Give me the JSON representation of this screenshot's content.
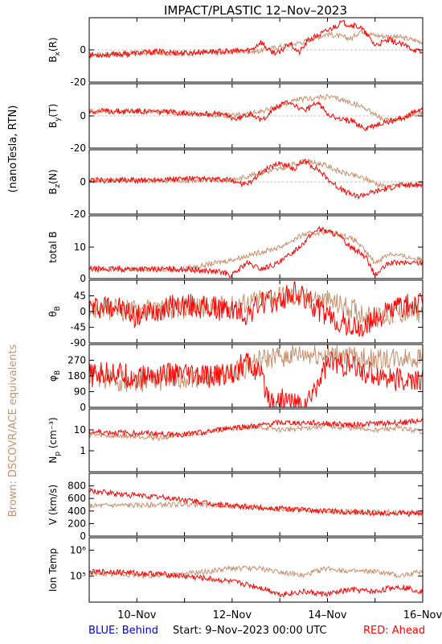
{
  "title": "IMPACT/PLASTIC   12–Nov–2023",
  "units_label": "(nanoTesla, RTN)",
  "side_label": "Brown: DSCOVR/ACE equivalents",
  "footer": {
    "behind": "BLUE: Behind",
    "start": "Start:   9–Nov–2023 00:00 UTC",
    "ahead": "RED: Ahead"
  },
  "colors": {
    "ahead": "#ff0000",
    "equivalent": "#c8906e",
    "behind": "#0000cc",
    "axis": "#000000"
  },
  "chart_data": {
    "type": "line",
    "x_ticks": [
      "10–Nov",
      "12–Nov",
      "14–Nov",
      "16–Nov"
    ],
    "x_range": [
      "2023-11-09T00:00",
      "2023-11-16T00:00"
    ],
    "series_names": [
      "RED: Ahead",
      "Brown: DSCOVR/ACE equivalents"
    ],
    "panels": [
      {
        "id": "bx",
        "ylabel_main": "B",
        "ylabel_sub": "x",
        "ylabel_tail": "(R)",
        "ylim": [
          -20,
          20
        ],
        "ticks": [
          -20,
          0
        ],
        "zero_line": true,
        "ahead": [
          [
            0,
            -3
          ],
          [
            0.5,
            -3
          ],
          [
            1,
            -2
          ],
          [
            1.5,
            -1
          ],
          [
            2,
            -2
          ],
          [
            2.5,
            -1
          ],
          [
            3,
            -1
          ],
          [
            3.4,
            0
          ],
          [
            3.6,
            5
          ],
          [
            3.8,
            -1
          ],
          [
            4,
            -2
          ],
          [
            4.2,
            5
          ],
          [
            4.4,
            -2
          ],
          [
            4.6,
            6
          ],
          [
            5,
            12
          ],
          [
            5.3,
            17
          ],
          [
            5.7,
            14
          ],
          [
            6,
            3
          ],
          [
            6.3,
            6
          ],
          [
            6.6,
            3
          ],
          [
            7,
            -2
          ]
        ],
        "equiv": [
          [
            0,
            -3
          ],
          [
            1,
            -2
          ],
          [
            2,
            -2
          ],
          [
            3,
            -1
          ],
          [
            3.5,
            -1
          ],
          [
            4,
            2
          ],
          [
            4.5,
            5
          ],
          [
            5,
            10
          ],
          [
            5.5,
            7
          ],
          [
            5.7,
            12
          ],
          [
            6,
            9
          ],
          [
            6.5,
            8
          ],
          [
            7,
            5
          ]
        ]
      },
      {
        "id": "by",
        "ylabel_main": "B",
        "ylabel_sub": "y",
        "ylabel_tail": "(T)",
        "ylim": [
          -20,
          20
        ],
        "ticks": [
          -20,
          0
        ],
        "zero_line": true,
        "ahead": [
          [
            0,
            3
          ],
          [
            1,
            3
          ],
          [
            2,
            2
          ],
          [
            2.8,
            1
          ],
          [
            3.1,
            -2
          ],
          [
            3.4,
            2
          ],
          [
            3.6,
            -3
          ],
          [
            3.9,
            5
          ],
          [
            4.2,
            9
          ],
          [
            4.5,
            3
          ],
          [
            4.8,
            8
          ],
          [
            5,
            2
          ],
          [
            5.2,
            -2
          ],
          [
            5.5,
            -3
          ],
          [
            5.8,
            -8
          ],
          [
            6.2,
            -4
          ],
          [
            6.6,
            -1
          ],
          [
            7,
            5
          ]
        ],
        "equiv": [
          [
            0,
            3
          ],
          [
            1,
            3
          ],
          [
            2,
            2
          ],
          [
            3,
            0
          ],
          [
            3.5,
            2
          ],
          [
            4,
            6
          ],
          [
            4.4,
            10
          ],
          [
            5,
            12
          ],
          [
            5.3,
            10
          ],
          [
            5.8,
            5
          ],
          [
            6.2,
            -3
          ],
          [
            6.6,
            -1
          ],
          [
            7,
            2
          ]
        ]
      },
      {
        "id": "bz",
        "ylabel_main": "B",
        "ylabel_sub": "z",
        "ylabel_tail": "(N)",
        "ylim": [
          -20,
          20
        ],
        "ticks": [
          -20,
          0
        ],
        "zero_line": true,
        "ahead": [
          [
            0,
            1
          ],
          [
            1,
            1
          ],
          [
            2,
            2
          ],
          [
            3,
            1
          ],
          [
            3.3,
            -2
          ],
          [
            3.6,
            6
          ],
          [
            4,
            12
          ],
          [
            4.3,
            8
          ],
          [
            4.5,
            13
          ],
          [
            4.8,
            8
          ],
          [
            5,
            2
          ],
          [
            5.3,
            -5
          ],
          [
            5.6,
            -9
          ],
          [
            6,
            -6
          ],
          [
            6.5,
            -2
          ],
          [
            7,
            -2
          ]
        ],
        "equiv": [
          [
            0,
            1
          ],
          [
            1,
            1
          ],
          [
            2,
            1
          ],
          [
            3,
            1
          ],
          [
            3.5,
            5
          ],
          [
            4,
            8
          ],
          [
            4.5,
            13
          ],
          [
            4.9,
            11
          ],
          [
            5.3,
            6
          ],
          [
            5.8,
            2
          ],
          [
            6.2,
            -3
          ],
          [
            6.6,
            -2
          ],
          [
            7,
            -1
          ]
        ]
      },
      {
        "id": "btot",
        "ylabel_main": "total B",
        "ylabel_sub": "",
        "ylabel_tail": "",
        "ylim": [
          0,
          20
        ],
        "ticks": [
          0,
          10
        ],
        "zero_line": false,
        "ahead": [
          [
            0,
            3
          ],
          [
            1,
            3
          ],
          [
            2,
            3
          ],
          [
            2.8,
            2
          ],
          [
            3,
            1
          ],
          [
            3.3,
            5
          ],
          [
            3.6,
            3
          ],
          [
            4,
            5
          ],
          [
            4.4,
            10
          ],
          [
            4.8,
            16
          ],
          [
            5.2,
            14
          ],
          [
            5.5,
            10
          ],
          [
            5.8,
            7
          ],
          [
            6,
            1
          ],
          [
            6.3,
            5
          ],
          [
            6.6,
            5
          ],
          [
            7,
            5
          ]
        ],
        "equiv": [
          [
            0,
            3
          ],
          [
            1,
            3
          ],
          [
            2,
            3
          ],
          [
            3,
            6
          ],
          [
            3.5,
            8
          ],
          [
            4,
            10
          ],
          [
            4.5,
            14
          ],
          [
            5,
            15
          ],
          [
            5.3,
            14
          ],
          [
            5.6,
            12
          ],
          [
            6,
            5
          ],
          [
            6.3,
            8
          ],
          [
            6.6,
            7
          ],
          [
            7,
            6
          ]
        ]
      },
      {
        "id": "theta",
        "ylabel_main": "θ",
        "ylabel_sub": "B",
        "ylabel_tail": "",
        "ylim": [
          -90,
          90
        ],
        "ticks": [
          -90,
          -45,
          0,
          45
        ],
        "zero_line": false,
        "ahead": [
          [
            0,
            10
          ],
          [
            0.5,
            20
          ],
          [
            1,
            -15
          ],
          [
            1.5,
            10
          ],
          [
            2,
            20
          ],
          [
            2.5,
            10
          ],
          [
            3,
            5
          ],
          [
            3.3,
            -10
          ],
          [
            3.6,
            25
          ],
          [
            4,
            30
          ],
          [
            4.3,
            55
          ],
          [
            4.6,
            30
          ],
          [
            5,
            -15
          ],
          [
            5.4,
            -40
          ],
          [
            5.7,
            -55
          ],
          [
            6,
            -20
          ],
          [
            6.5,
            15
          ],
          [
            7,
            20
          ]
        ],
        "equiv": [
          [
            0,
            5
          ],
          [
            1,
            5
          ],
          [
            2,
            10
          ],
          [
            3,
            15
          ],
          [
            3.5,
            30
          ],
          [
            4,
            45
          ],
          [
            4.5,
            40
          ],
          [
            5,
            30
          ],
          [
            5.5,
            10
          ],
          [
            6,
            -20
          ],
          [
            6.5,
            -5
          ],
          [
            7,
            0
          ]
        ]
      },
      {
        "id": "phi",
        "ylabel_main": "φ",
        "ylabel_sub": "B",
        "ylabel_tail": "",
        "ylim": [
          0,
          360
        ],
        "ticks": [
          0,
          90,
          180,
          270
        ],
        "zero_line": false,
        "ahead": [
          [
            0,
            180
          ],
          [
            0.5,
            200
          ],
          [
            1,
            170
          ],
          [
            1.5,
            190
          ],
          [
            2,
            180
          ],
          [
            2.5,
            170
          ],
          [
            3,
            200
          ],
          [
            3.3,
            260
          ],
          [
            3.6,
            180
          ],
          [
            3.8,
            40
          ],
          [
            4.2,
            40
          ],
          [
            4.4,
            10
          ],
          [
            4.6,
            30
          ],
          [
            5,
            260
          ],
          [
            5.4,
            240
          ],
          [
            5.8,
            200
          ],
          [
            6.2,
            180
          ],
          [
            6.6,
            150
          ],
          [
            7,
            150
          ]
        ],
        "equiv": [
          [
            0,
            180
          ],
          [
            1,
            140
          ],
          [
            2,
            170
          ],
          [
            3,
            190
          ],
          [
            3.5,
            260
          ],
          [
            4,
            290
          ],
          [
            4.5,
            300
          ],
          [
            5,
            300
          ],
          [
            5.5,
            290
          ],
          [
            6,
            270
          ],
          [
            6.5,
            280
          ],
          [
            7,
            290
          ]
        ]
      },
      {
        "id": "np",
        "ylabel_main": "N",
        "ylabel_sub": "p",
        "ylabel_tail": " (cm⁻³)",
        "log": true,
        "ylim": [
          0.1,
          100
        ],
        "ticks": [
          1,
          10
        ],
        "zero_line": false,
        "ahead": [
          [
            0,
            8
          ],
          [
            1,
            7
          ],
          [
            2,
            6
          ],
          [
            2.5,
            8
          ],
          [
            3,
            13
          ],
          [
            3.5,
            15
          ],
          [
            4,
            22
          ],
          [
            4.5,
            22
          ],
          [
            5,
            20
          ],
          [
            5.5,
            18
          ],
          [
            6,
            20
          ],
          [
            6.5,
            22
          ],
          [
            7,
            28
          ]
        ],
        "equiv": [
          [
            0,
            6
          ],
          [
            0.5,
            5
          ],
          [
            1,
            5
          ],
          [
            1.5,
            4
          ],
          [
            2,
            6
          ],
          [
            2.5,
            8
          ],
          [
            3,
            12
          ],
          [
            3.5,
            14
          ],
          [
            4,
            10
          ],
          [
            4.5,
            12
          ],
          [
            5,
            15
          ],
          [
            5.5,
            12
          ],
          [
            6,
            10
          ],
          [
            6.5,
            12
          ],
          [
            7,
            8
          ]
        ]
      },
      {
        "id": "v",
        "ylabel_main": "V (km/s)",
        "ylabel_sub": "",
        "ylabel_tail": "",
        "ylim": [
          0,
          1000
        ],
        "ticks": [
          0,
          200,
          400,
          600,
          800
        ],
        "zero_line": false,
        "ahead": [
          [
            0,
            720
          ],
          [
            0.5,
            680
          ],
          [
            1,
            650
          ],
          [
            1.5,
            620
          ],
          [
            2,
            580
          ],
          [
            2.5,
            520
          ],
          [
            3,
            480
          ],
          [
            3.5,
            460
          ],
          [
            4,
            440
          ],
          [
            4.5,
            420
          ],
          [
            5,
            400
          ],
          [
            5.5,
            380
          ],
          [
            6,
            370
          ],
          [
            6.5,
            360
          ],
          [
            7,
            350
          ]
        ],
        "equiv": [
          [
            0,
            480
          ],
          [
            0.5,
            490
          ],
          [
            1,
            490
          ],
          [
            1.5,
            500
          ],
          [
            2,
            510
          ],
          [
            2.5,
            500
          ],
          [
            3,
            480
          ],
          [
            3.5,
            450
          ],
          [
            4,
            430
          ],
          [
            4.5,
            410
          ],
          [
            5,
            400
          ],
          [
            5.5,
            390
          ],
          [
            6,
            380
          ],
          [
            6.5,
            380
          ],
          [
            7,
            380
          ]
        ]
      },
      {
        "id": "temp",
        "ylabel_main": "Ion Temp",
        "ylabel_sub": "",
        "ylabel_tail": "",
        "log": true,
        "ylim": [
          10000,
          3000000
        ],
        "ticks": [
          100000,
          1000000
        ],
        "tick_labels": [
          "10⁵",
          "10⁶"
        ],
        "zero_line": false,
        "ahead": [
          [
            0,
            140000
          ],
          [
            0.5,
            150000
          ],
          [
            1,
            130000
          ],
          [
            1.5,
            120000
          ],
          [
            2,
            100000
          ],
          [
            2.5,
            80000
          ],
          [
            3,
            60000
          ],
          [
            3.5,
            40000
          ],
          [
            4,
            20000
          ],
          [
            4.5,
            25000
          ],
          [
            5,
            20000
          ],
          [
            5.5,
            30000
          ],
          [
            6,
            25000
          ],
          [
            6.5,
            40000
          ],
          [
            7,
            25000
          ]
        ],
        "equiv": [
          [
            0,
            120000
          ],
          [
            0.5,
            120000
          ],
          [
            1,
            110000
          ],
          [
            1.5,
            100000
          ],
          [
            2,
            120000
          ],
          [
            2.5,
            150000
          ],
          [
            3,
            200000
          ],
          [
            3.5,
            200000
          ],
          [
            4,
            150000
          ],
          [
            4.5,
            100000
          ],
          [
            5,
            200000
          ],
          [
            5.5,
            150000
          ],
          [
            6,
            150000
          ],
          [
            6.5,
            100000
          ],
          [
            7,
            150000
          ]
        ]
      }
    ]
  }
}
